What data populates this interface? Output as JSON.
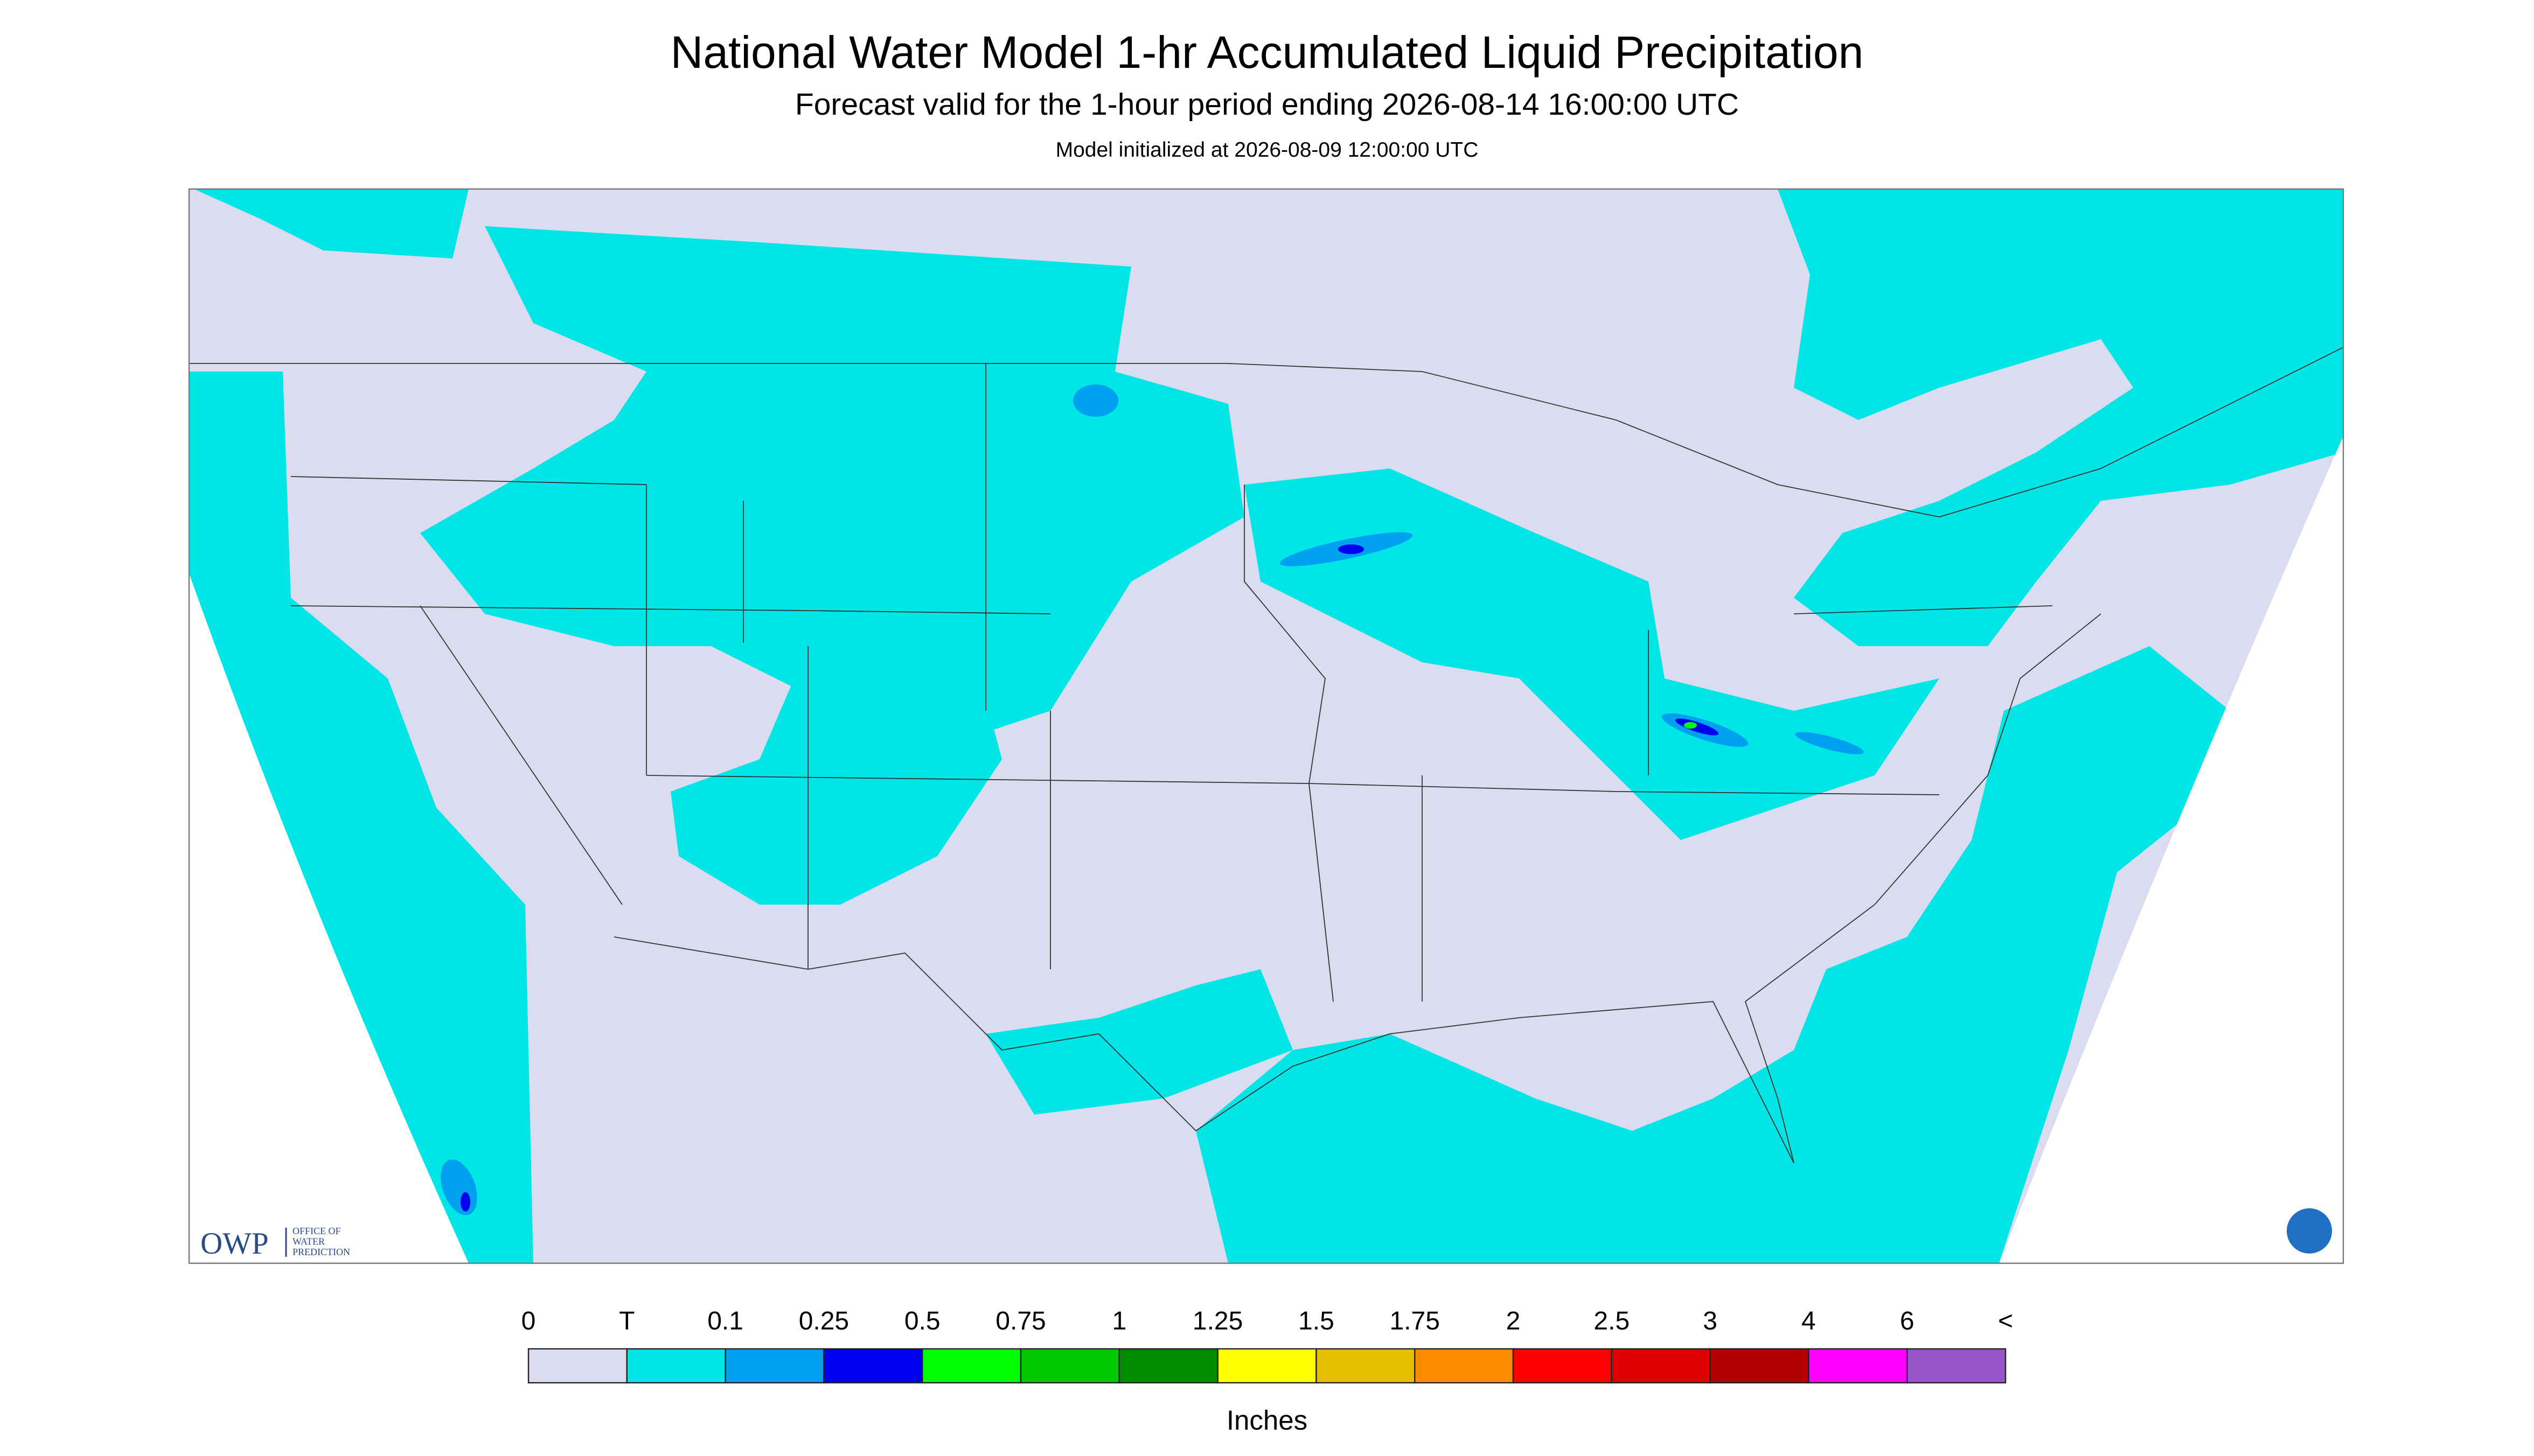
{
  "header": {
    "title": "National Water Model 1-hr Accumulated Liquid Precipitation",
    "subtitle": "Forecast valid for the 1-hour period ending 2026-08-14 16:00:00 UTC",
    "initialized": "Model initialized at 2026-08-09 12:00:00 UTC"
  },
  "legend": {
    "labels": [
      "0",
      "T",
      "0.1",
      "0.25",
      "0.5",
      "0.75",
      "1",
      "1.25",
      "1.5",
      "1.75",
      "2",
      "2.5",
      "3",
      "4",
      "6",
      "<"
    ],
    "colors": [
      "#dcdcf0",
      "#00e6e6",
      "#00a0f0",
      "#0000f0",
      "#00ff00",
      "#00c800",
      "#008c00",
      "#ffff00",
      "#e6c000",
      "#ff8c00",
      "#ff0000",
      "#dc0000",
      "#b40000",
      "#ff00ff",
      "#9955cc"
    ],
    "units": "Inches"
  },
  "logo": {
    "name": "OWP",
    "lines": [
      "OFFICE OF",
      "WATER",
      "PREDICTION"
    ]
  }
}
